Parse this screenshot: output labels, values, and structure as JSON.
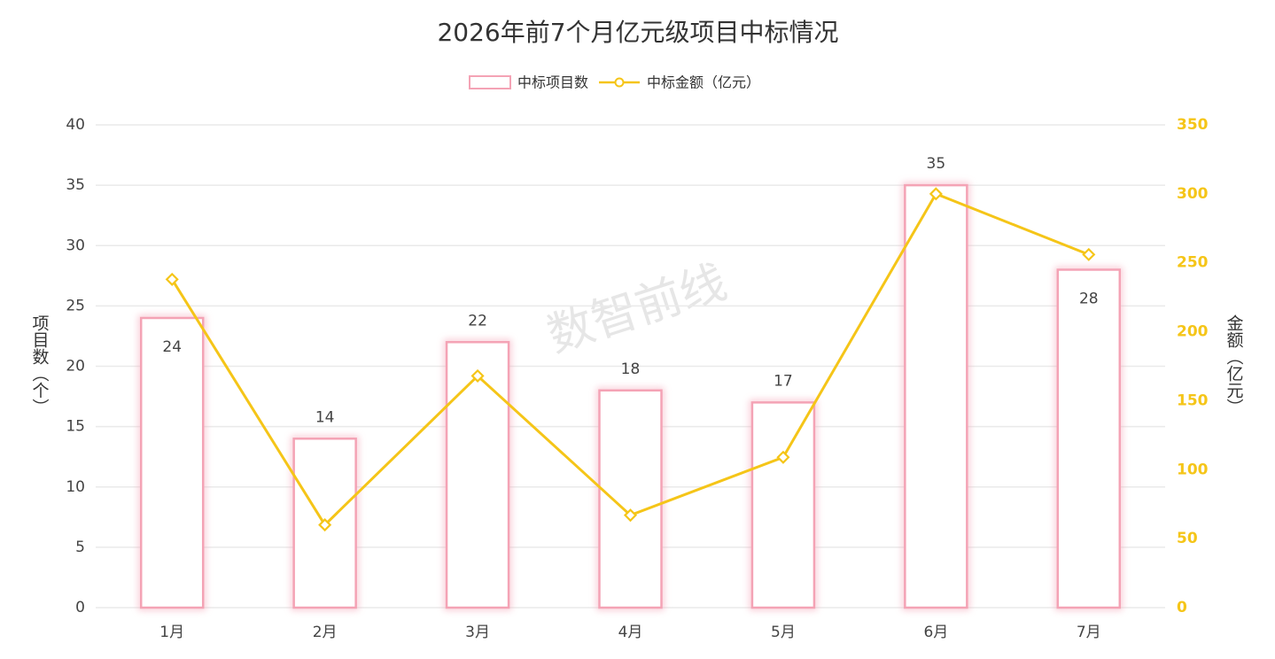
{
  "chart_data": {
    "type": "bar",
    "title": "2026年前7个月亿元级项目中标情况",
    "watermark": "数智前线",
    "categories": [
      "1月",
      "2月",
      "3月",
      "4月",
      "5月",
      "6月",
      "7月"
    ],
    "series": [
      {
        "name": "中标项目数",
        "type": "bar",
        "color": "#f4a3b5",
        "values": [
          24,
          14,
          22,
          18,
          17,
          35,
          28
        ]
      },
      {
        "name": "中标金额（亿元）",
        "type": "line",
        "axis": "y2",
        "color": "#f5c518",
        "values": [
          238,
          60,
          168,
          67,
          109,
          300,
          256
        ]
      }
    ],
    "ylabel": "项目数（个）",
    "y2label": "金额（亿元）",
    "ylim": [
      0,
      40
    ],
    "yticks": [
      0,
      5,
      10,
      15,
      20,
      25,
      30,
      35,
      40
    ],
    "y2lim": [
      0,
      350
    ],
    "y2ticks": [
      0,
      50,
      100,
      150,
      200,
      250,
      300,
      350
    ],
    "grid": true
  }
}
